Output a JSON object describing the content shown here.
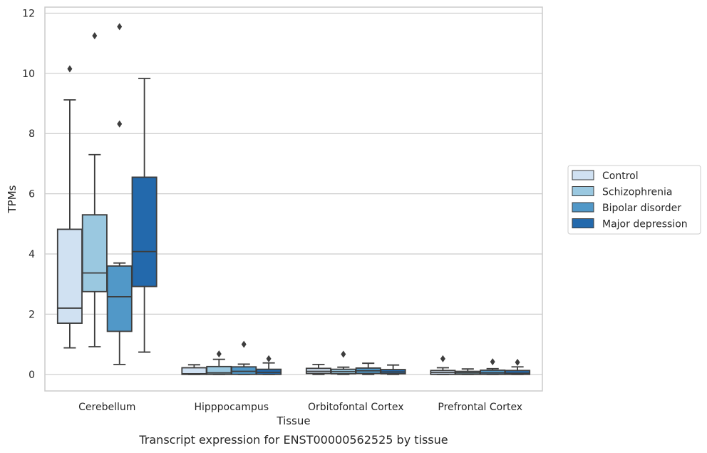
{
  "chart_data": {
    "type": "box",
    "title": "Transcript expression for ENST00000562525 by tissue",
    "xlabel": "Tissue",
    "ylabel": "TPMs",
    "ylim": [
      -0.55,
      12.2
    ],
    "yticks": [
      0,
      2,
      4,
      6,
      8,
      10,
      12
    ],
    "grid": "horizontal",
    "legend_position": "right",
    "categories": [
      "Cerebellum",
      "Hipppocampus",
      "Orbitofontal Cortex",
      "Prefrontal Cortex"
    ],
    "series": [
      {
        "name": "Control",
        "color": "#d0e1f2",
        "boxes": [
          {
            "whislo": 0.88,
            "q1": 1.7,
            "med": 2.2,
            "q3": 4.82,
            "whishi": 9.12,
            "fliers": [
              10.15
            ]
          },
          {
            "whislo": 0.0,
            "q1": 0.0,
            "med": 0.02,
            "q3": 0.22,
            "whishi": 0.32,
            "fliers": []
          },
          {
            "whislo": 0.0,
            "q1": 0.03,
            "med": 0.1,
            "q3": 0.2,
            "whishi": 0.33,
            "fliers": []
          },
          {
            "whislo": 0.0,
            "q1": 0.0,
            "med": 0.06,
            "q3": 0.13,
            "whishi": 0.22,
            "fliers": [
              0.52
            ]
          }
        ]
      },
      {
        "name": "Schizophrenia",
        "color": "#9ac8e0",
        "boxes": [
          {
            "whislo": 0.92,
            "q1": 2.75,
            "med": 3.37,
            "q3": 5.3,
            "whishi": 7.3,
            "fliers": [
              11.25
            ]
          },
          {
            "whislo": 0.0,
            "q1": 0.0,
            "med": 0.05,
            "q3": 0.26,
            "whishi": 0.5,
            "fliers": [
              0.68
            ]
          },
          {
            "whislo": 0.0,
            "q1": 0.02,
            "med": 0.09,
            "q3": 0.17,
            "whishi": 0.24,
            "fliers": [
              0.67
            ]
          },
          {
            "whislo": 0.0,
            "q1": 0.0,
            "med": 0.05,
            "q3": 0.1,
            "whishi": 0.18,
            "fliers": []
          }
        ]
      },
      {
        "name": "Bipolar disorder",
        "color": "#5198c8",
        "boxes": [
          {
            "whislo": 0.33,
            "q1": 1.43,
            "med": 2.58,
            "q3": 3.6,
            "whishi": 3.7,
            "fliers": [
              8.32,
              11.55
            ]
          },
          {
            "whislo": 0.0,
            "q1": 0.0,
            "med": 0.1,
            "q3": 0.25,
            "whishi": 0.34,
            "fliers": [
              1.0
            ]
          },
          {
            "whislo": 0.0,
            "q1": 0.03,
            "med": 0.12,
            "q3": 0.21,
            "whishi": 0.37,
            "fliers": []
          },
          {
            "whislo": 0.0,
            "q1": 0.0,
            "med": 0.05,
            "q3": 0.14,
            "whishi": 0.19,
            "fliers": [
              0.42
            ]
          }
        ]
      },
      {
        "name": "Major depression",
        "color": "#2369ac",
        "boxes": [
          {
            "whislo": 0.74,
            "q1": 2.92,
            "med": 4.08,
            "q3": 6.55,
            "whishi": 9.83,
            "fliers": []
          },
          {
            "whislo": 0.0,
            "q1": 0.0,
            "med": 0.07,
            "q3": 0.17,
            "whishi": 0.38,
            "fliers": [
              0.52
            ]
          },
          {
            "whislo": 0.0,
            "q1": 0.02,
            "med": 0.08,
            "q3": 0.16,
            "whishi": 0.31,
            "fliers": []
          },
          {
            "whislo": 0.0,
            "q1": 0.0,
            "med": 0.04,
            "q3": 0.13,
            "whishi": 0.25,
            "fliers": [
              0.4
            ]
          }
        ]
      }
    ]
  }
}
